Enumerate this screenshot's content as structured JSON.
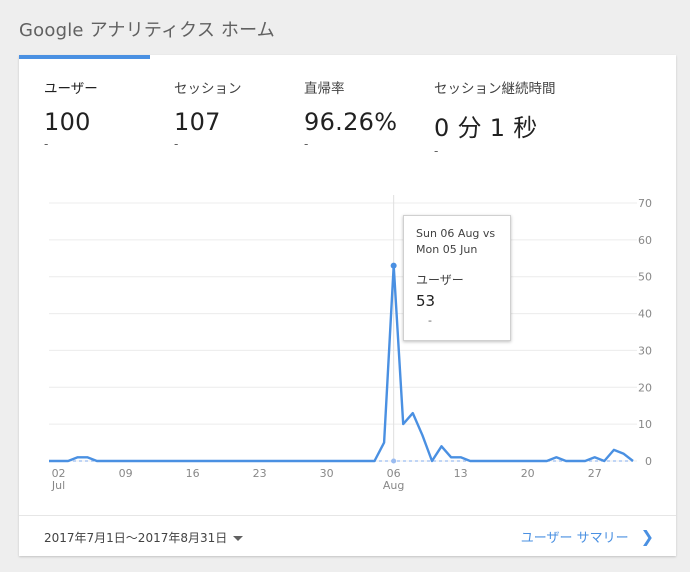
{
  "page": {
    "title": "Google アナリティクス ホーム"
  },
  "metrics": [
    {
      "label": "ユーザー",
      "value": "100",
      "delta": "-"
    },
    {
      "label": "セッション",
      "value": "107",
      "delta": "-"
    },
    {
      "label": "直帰率",
      "value": "96.26%",
      "delta": "-"
    },
    {
      "label": "セッション継続時間",
      "value": "0 分 1 秒",
      "delta": "-"
    }
  ],
  "tooltip": {
    "date_line1": "Sun 06 Aug vs",
    "date_line2": "Mon 05 Jun",
    "label": "ユーザー",
    "value": "53",
    "delta": "-"
  },
  "footer": {
    "date_range": "2017年7月1日〜2017年8月31日",
    "report_link": "ユーザー サマリー"
  },
  "colors": {
    "accent": "#4a90e2",
    "line": "#4a90e2",
    "compare": "#9bbcf0"
  },
  "chart_data": {
    "type": "line",
    "ylim": [
      0,
      70
    ],
    "y_ticks": [
      0,
      10,
      20,
      30,
      40,
      50,
      60,
      70
    ],
    "y_tick_labels": [
      "0",
      "10",
      "20",
      "30",
      "40",
      "50",
      "60",
      "70"
    ],
    "x_ticks": [
      {
        "day": 2,
        "label": "02",
        "sub": "Jul"
      },
      {
        "day": 9,
        "label": "09",
        "sub": ""
      },
      {
        "day": 16,
        "label": "16",
        "sub": ""
      },
      {
        "day": 23,
        "label": "23",
        "sub": ""
      },
      {
        "day": 30,
        "label": "30",
        "sub": ""
      },
      {
        "day": 37,
        "label": "06",
        "sub": "Aug"
      },
      {
        "day": 44,
        "label": "13",
        "sub": ""
      },
      {
        "day": 51,
        "label": "20",
        "sub": ""
      },
      {
        "day": 58,
        "label": "27",
        "sub": ""
      }
    ],
    "x_range": [
      1,
      62
    ],
    "series": [
      {
        "values": [
          0,
          0,
          0,
          1,
          1,
          0,
          0,
          0,
          0,
          0,
          0,
          0,
          0,
          0,
          0,
          0,
          0,
          0,
          0,
          0,
          0,
          0,
          0,
          0,
          0,
          0,
          0,
          0,
          0,
          0,
          0,
          0,
          0,
          0,
          0,
          5,
          53,
          10,
          13,
          7,
          0,
          4,
          1,
          1,
          0,
          0,
          0,
          0,
          0,
          0,
          0,
          0,
          0,
          1,
          0,
          0,
          0,
          1,
          0,
          3,
          2,
          0
        ]
      },
      {
        "values": [
          0,
          0,
          0,
          0,
          0,
          0,
          0,
          0,
          0,
          0,
          0,
          0,
          0,
          0,
          0,
          0,
          0,
          0,
          0,
          0,
          0,
          0,
          0,
          0,
          0,
          0,
          0,
          0,
          0,
          0,
          0,
          0,
          0,
          0,
          0,
          0,
          0,
          0,
          0,
          0,
          0,
          0,
          0,
          0,
          0,
          0,
          0,
          0,
          0,
          0,
          0,
          0,
          0,
          0,
          0,
          0,
          0,
          0,
          0,
          0,
          0,
          0
        ]
      }
    ],
    "highlight_day": 37
  }
}
